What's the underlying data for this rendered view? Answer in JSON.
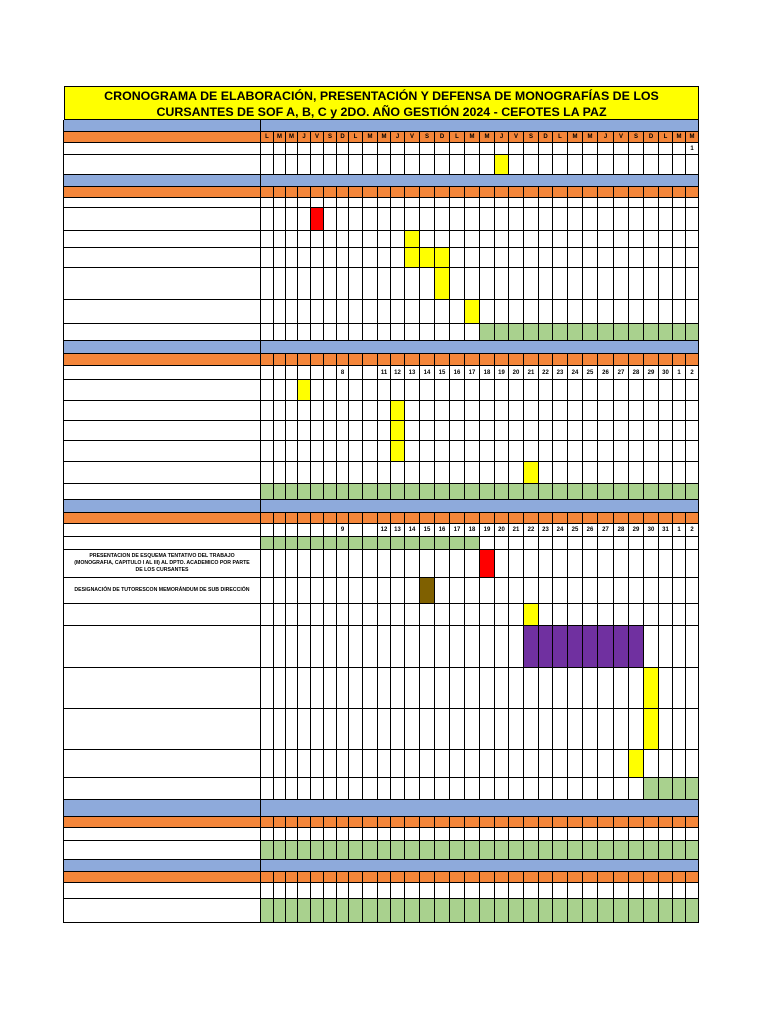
{
  "header": {
    "title_lines": [
      "CRONOGRAMA DE ELABORACIÓN, PRESENTACIÓN Y DEFENSA DE MONOGRAFÍAS DE LOS",
      "CURSANTES DE SOF A, B, C y  2DO. AÑO  GESTIÓN 2024 - CEFOTES LA PAZ"
    ]
  },
  "table": {
    "day_letters": [
      "L",
      "M",
      "M",
      "J",
      "V",
      "S",
      "D",
      "L",
      "M",
      "M",
      "J",
      "V",
      "S",
      "D",
      "L",
      "M",
      "M",
      "J",
      "V",
      "S",
      "D",
      "L",
      "M",
      "M",
      "J",
      "V",
      "S",
      "D",
      "L",
      "M",
      "M"
    ],
    "section1_days": [
      null,
      null,
      null,
      null,
      null,
      null,
      null,
      null,
      null,
      null,
      null,
      null,
      null,
      null,
      null,
      null,
      null,
      null,
      null,
      null,
      null,
      null,
      null,
      null,
      null,
      null,
      null,
      null,
      null,
      null,
      1
    ],
    "section3_days": [
      null,
      null,
      null,
      null,
      null,
      null,
      8,
      null,
      null,
      11,
      12,
      13,
      14,
      15,
      16,
      17,
      18,
      19,
      20,
      21,
      22,
      23,
      24,
      25,
      26,
      27,
      28,
      29,
      30,
      1,
      2
    ],
    "section4_days": [
      null,
      null,
      null,
      null,
      null,
      null,
      9,
      null,
      null,
      12,
      13,
      14,
      15,
      16,
      17,
      18,
      19,
      20,
      21,
      22,
      23,
      24,
      25,
      26,
      27,
      28,
      29,
      30,
      31,
      1,
      2
    ],
    "activities": [
      "PRESENTACION DE ESQUEMA TENTATIVO DEL TRABAJO (MONOGRAFIA, CAPITULO I AL III) AL DPTO. ACADEMICO POR PARTE DE LOS CURSANTES",
      "DESIGNACIÓN DE TUTORESCON MEMORÁNDUM DE SUB DIRECCIÓN"
    ]
  }
}
